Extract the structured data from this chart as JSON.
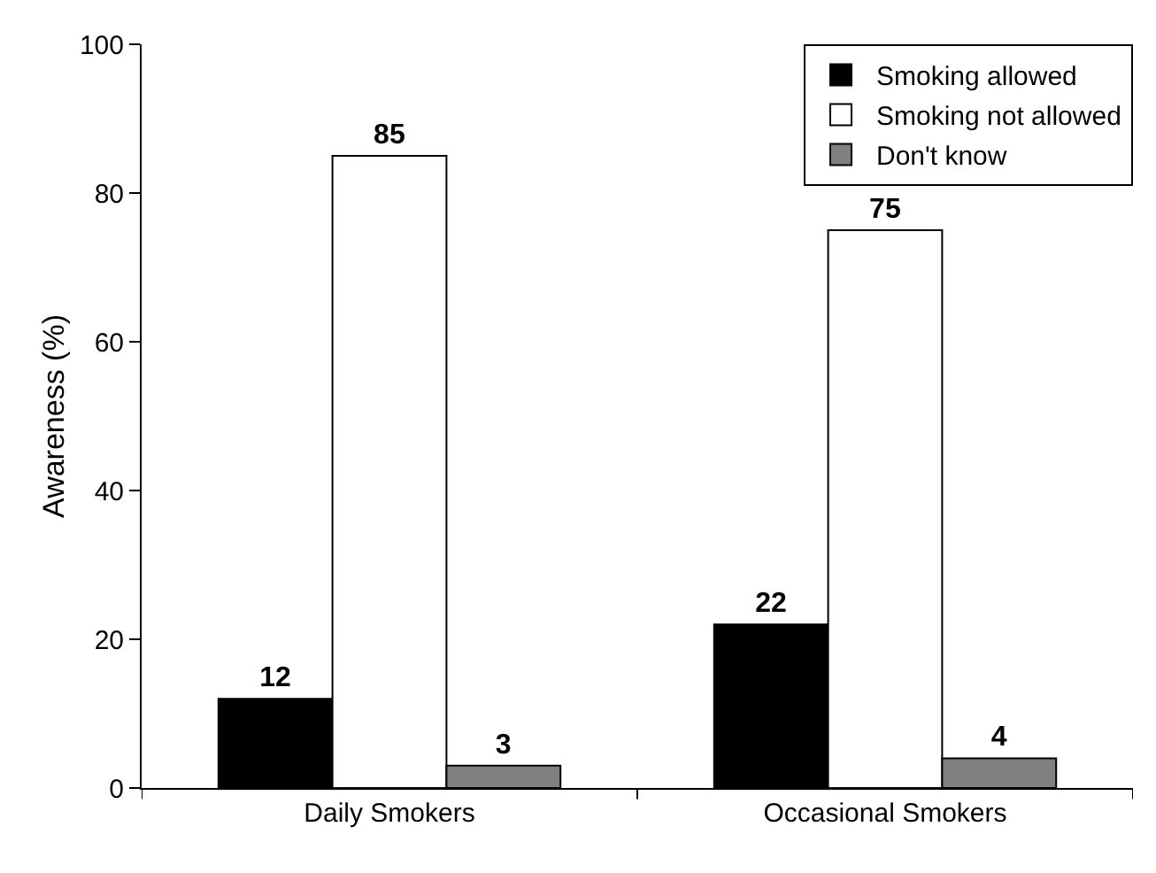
{
  "chart_data": {
    "type": "bar",
    "ylabel": "Awareness (%)",
    "categories": [
      "Daily Smokers",
      "Occasional Smokers"
    ],
    "series": [
      {
        "name": "Smoking allowed",
        "color": "#000000",
        "values": [
          12,
          22
        ]
      },
      {
        "name": "Smoking not allowed",
        "color": "#ffffff",
        "values": [
          85,
          75
        ]
      },
      {
        "name": "Don't know",
        "color": "#808080",
        "values": [
          3,
          4
        ]
      }
    ],
    "ylim": [
      0,
      100
    ],
    "yticks": [
      0,
      20,
      40,
      60,
      80,
      100
    ],
    "grid": false,
    "legend": "top right",
    "data_labels": true
  }
}
